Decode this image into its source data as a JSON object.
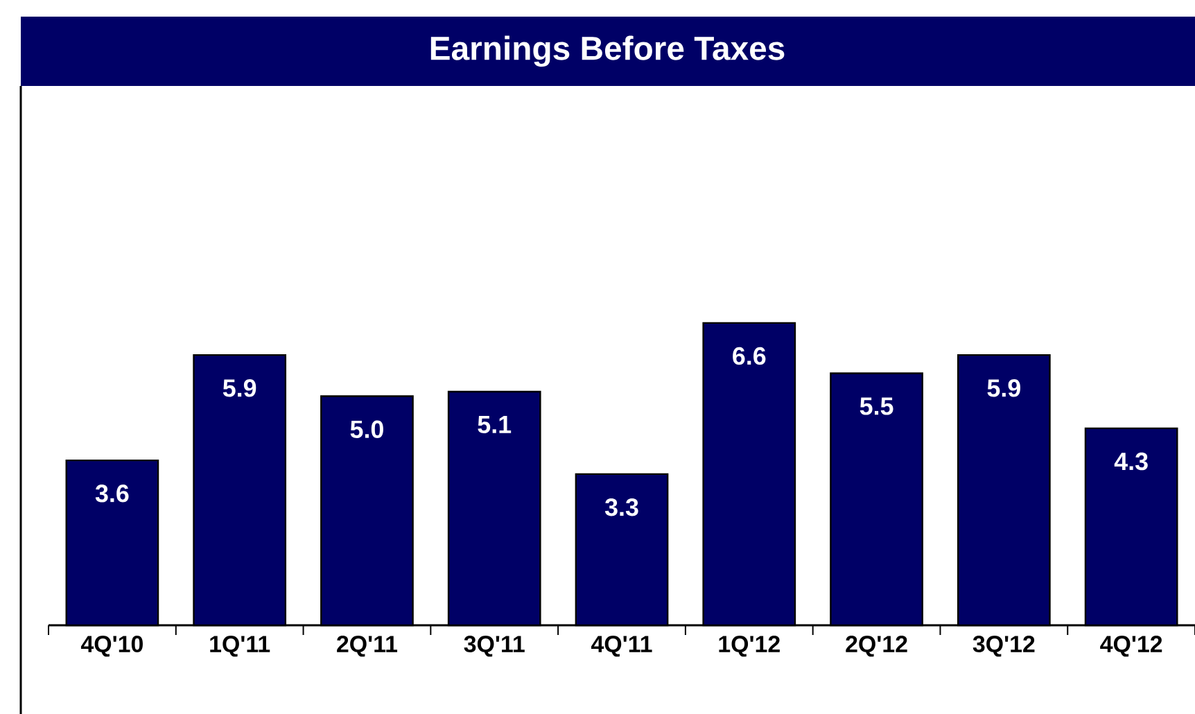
{
  "chart_data": {
    "type": "bar",
    "title": "Earnings Before Taxes",
    "categories": [
      "4Q'10",
      "1Q'11",
      "2Q'11",
      "3Q'11",
      "4Q'11",
      "1Q'12",
      "2Q'12",
      "3Q'12",
      "4Q'12"
    ],
    "values": [
      3.6,
      5.9,
      5.0,
      5.1,
      3.3,
      6.6,
      5.5,
      5.9,
      4.3
    ],
    "value_labels": [
      "3.6",
      "5.9",
      "5.0",
      "5.1",
      "3.3",
      "6.6",
      "5.5",
      "5.9",
      "4.3"
    ],
    "color": "#000066"
  }
}
